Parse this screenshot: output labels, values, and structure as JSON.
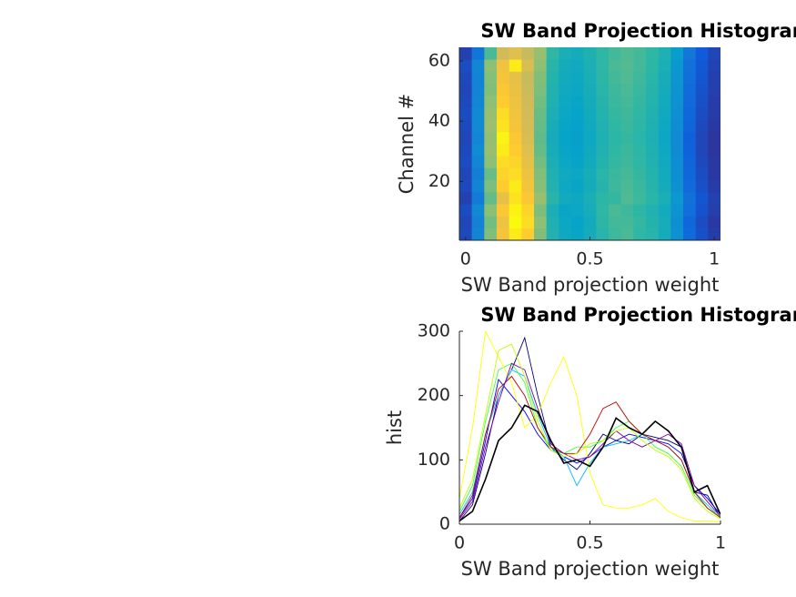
{
  "chart_data": [
    {
      "type": "heatmap",
      "title": "SW Band Projection Histogram: All Channels",
      "xlabel": "SW Band projection weight",
      "ylabel": "Channel #",
      "x": [
        0,
        0.05,
        0.1,
        0.15,
        0.2,
        0.25,
        0.3,
        0.35,
        0.4,
        0.45,
        0.5,
        0.55,
        0.6,
        0.65,
        0.7,
        0.75,
        0.8,
        0.85,
        0.9,
        0.95,
        1
      ],
      "y": [
        2.5,
        6.5,
        10.5,
        14.5,
        18.5,
        22.5,
        26.5,
        30.5,
        34.5,
        38.5,
        42.5,
        46.5,
        50.5,
        54.5,
        58.5,
        62.5
      ],
      "xlim": [
        -0.025,
        1.025
      ],
      "ylim": [
        0.5,
        64.5
      ],
      "xticks": [
        0,
        0.5,
        1
      ],
      "yticks": [
        20,
        40,
        60
      ],
      "clim": [
        0,
        260
      ],
      "colormap": [
        "#352a87",
        "#0f5cdd",
        "#1481d6",
        "#06a4ca",
        "#2eb7a4",
        "#87bf77",
        "#d1bb59",
        "#fec832",
        "#f9fb0e"
      ],
      "values": [
        [
          20,
          70,
          160,
          220,
          250,
          230,
          160,
          120,
          105,
          100,
          110,
          125,
          135,
          140,
          130,
          125,
          110,
          80,
          45,
          25,
          12
        ],
        [
          18,
          65,
          155,
          215,
          260,
          240,
          165,
          118,
          102,
          98,
          108,
          128,
          138,
          138,
          132,
          122,
          112,
          78,
          42,
          22,
          10
        ],
        [
          22,
          72,
          165,
          225,
          255,
          235,
          158,
          115,
          100,
          102,
          112,
          130,
          140,
          136,
          128,
          120,
          108,
          82,
          48,
          26,
          14
        ],
        [
          15,
          60,
          150,
          210,
          245,
          225,
          170,
          125,
          108,
          104,
          115,
          128,
          132,
          142,
          135,
          126,
          114,
          85,
          50,
          28,
          15
        ],
        [
          20,
          68,
          158,
          230,
          250,
          220,
          162,
          120,
          104,
          100,
          110,
          124,
          136,
          140,
          134,
          124,
          110,
          80,
          44,
          24,
          12
        ],
        [
          18,
          62,
          152,
          235,
          240,
          215,
          160,
          118,
          106,
          102,
          112,
          126,
          134,
          138,
          132,
          122,
          108,
          78,
          42,
          22,
          10
        ],
        [
          22,
          70,
          165,
          240,
          235,
          210,
          155,
          115,
          102,
          98,
          108,
          122,
          132,
          136,
          130,
          120,
          106,
          76,
          40,
          20,
          10
        ],
        [
          20,
          75,
          170,
          250,
          230,
          205,
          150,
          112,
          100,
          96,
          106,
          120,
          130,
          134,
          128,
          118,
          104,
          74,
          38,
          18,
          8
        ],
        [
          18,
          70,
          168,
          255,
          225,
          200,
          148,
          110,
          98,
          94,
          104,
          118,
          128,
          132,
          126,
          116,
          102,
          72,
          36,
          18,
          8
        ],
        [
          20,
          72,
          172,
          245,
          220,
          198,
          150,
          112,
          100,
          96,
          106,
          120,
          130,
          134,
          128,
          118,
          104,
          76,
          40,
          20,
          10
        ],
        [
          22,
          74,
          170,
          240,
          218,
          196,
          152,
          115,
          102,
          98,
          108,
          122,
          132,
          136,
          130,
          120,
          106,
          78,
          42,
          22,
          12
        ],
        [
          20,
          70,
          165,
          230,
          215,
          195,
          155,
          118,
          104,
          100,
          110,
          124,
          134,
          138,
          132,
          122,
          108,
          80,
          44,
          24,
          12
        ],
        [
          18,
          66,
          160,
          225,
          212,
          192,
          158,
          120,
          106,
          102,
          112,
          126,
          136,
          140,
          134,
          124,
          110,
          82,
          46,
          26,
          14
        ],
        [
          20,
          68,
          162,
          220,
          210,
          190,
          160,
          122,
          108,
          104,
          114,
          128,
          138,
          142,
          136,
          126,
          112,
          84,
          48,
          28,
          14
        ],
        [
          22,
          70,
          165,
          215,
          250,
          200,
          165,
          125,
          110,
          106,
          116,
          130,
          140,
          144,
          138,
          128,
          114,
          86,
          50,
          30,
          16
        ],
        [
          15,
          55,
          140,
          195,
          205,
          190,
          170,
          130,
          115,
          110,
          118,
          130,
          138,
          142,
          138,
          130,
          118,
          92,
          56,
          32,
          18
        ]
      ]
    },
    {
      "type": "line",
      "title": "SW Band Projection Histogram: All Channels",
      "xlabel": "SW Band projection weight",
      "ylabel": "hist",
      "x": [
        0,
        0.05,
        0.1,
        0.15,
        0.2,
        0.25,
        0.3,
        0.35,
        0.4,
        0.45,
        0.5,
        0.55,
        0.6,
        0.65,
        0.7,
        0.75,
        0.8,
        0.85,
        0.9,
        0.95,
        1
      ],
      "xlim": [
        0,
        1
      ],
      "ylim": [
        0,
        300
      ],
      "xticks": [
        0,
        0.5,
        1
      ],
      "yticks": [
        0,
        100,
        200,
        300
      ],
      "series": [
        {
          "color": "#0000ff",
          "values": [
            10,
            40,
            130,
            225,
            200,
            175,
            140,
            115,
            105,
            95,
            105,
            120,
            130,
            140,
            135,
            130,
            125,
            110,
            60,
            40,
            15
          ]
        },
        {
          "color": "#000080",
          "values": [
            5,
            30,
            110,
            200,
            240,
            290,
            200,
            120,
            100,
            85,
            110,
            140,
            130,
            125,
            140,
            135,
            130,
            120,
            50,
            45,
            10
          ]
        },
        {
          "color": "#00bfff",
          "values": [
            15,
            50,
            140,
            200,
            240,
            230,
            170,
            120,
            105,
            60,
            95,
            120,
            125,
            130,
            140,
            130,
            120,
            100,
            50,
            30,
            10
          ]
        },
        {
          "color": "#40ff40",
          "values": [
            20,
            60,
            160,
            240,
            250,
            220,
            150,
            115,
            110,
            120,
            120,
            130,
            150,
            160,
            140,
            120,
            110,
            90,
            45,
            25,
            12
          ]
        },
        {
          "color": "#ffff00",
          "values": [
            40,
            150,
            300,
            260,
            220,
            150,
            170,
            220,
            260,
            200,
            80,
            30,
            25,
            25,
            30,
            40,
            20,
            10,
            5,
            5,
            3
          ]
        },
        {
          "color": "#c00000",
          "values": [
            10,
            45,
            140,
            210,
            230,
            200,
            150,
            120,
            110,
            110,
            140,
            180,
            190,
            160,
            140,
            130,
            120,
            100,
            50,
            25,
            10
          ]
        },
        {
          "color": "#8000a0",
          "values": [
            8,
            35,
            120,
            190,
            250,
            240,
            180,
            125,
            110,
            100,
            105,
            125,
            145,
            130,
            120,
            130,
            140,
            125,
            60,
            35,
            12
          ]
        },
        {
          "color": "#c0ff00",
          "values": [
            25,
            70,
            170,
            270,
            280,
            230,
            160,
            115,
            105,
            110,
            125,
            130,
            145,
            150,
            130,
            115,
            105,
            85,
            40,
            20,
            8
          ]
        },
        {
          "color": "#000000",
          "values": [
            5,
            20,
            70,
            130,
            150,
            185,
            175,
            130,
            95,
            100,
            90,
            120,
            165,
            150,
            140,
            160,
            145,
            120,
            50,
            60,
            15
          ]
        }
      ]
    }
  ]
}
